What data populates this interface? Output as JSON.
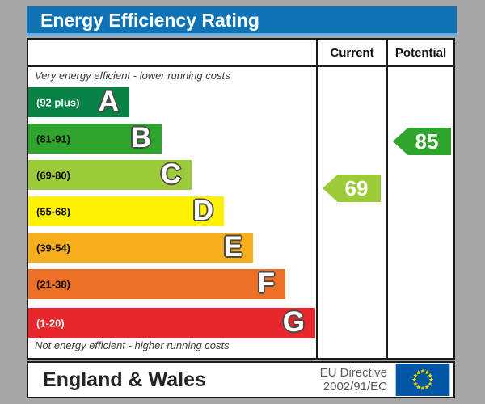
{
  "header": {
    "title": "Energy Efficiency Rating"
  },
  "table": {
    "current_label": "Current",
    "potential_label": "Potential",
    "top_note": "Very energy efficient - lower running costs",
    "bottom_note": "Not energy efficient - higher running costs"
  },
  "chart_data": {
    "type": "bar",
    "title": "Energy Efficiency Rating",
    "categories": [
      "A",
      "B",
      "C",
      "D",
      "E",
      "F",
      "G"
    ],
    "bands": [
      {
        "letter": "A",
        "range_label": "(92 plus)",
        "min": 92,
        "max": 100,
        "color": "#078445",
        "range_text_color": "#ffffff"
      },
      {
        "letter": "B",
        "range_label": "(81-91)",
        "min": 81,
        "max": 91,
        "color": "#2EA52C",
        "range_text_color": "#101010"
      },
      {
        "letter": "C",
        "range_label": "(69-80)",
        "min": 69,
        "max": 80,
        "color": "#9BCA3B",
        "range_text_color": "#101010"
      },
      {
        "letter": "D",
        "range_label": "(55-68)",
        "min": 55,
        "max": 68,
        "color": "#FEF102",
        "range_text_color": "#101010"
      },
      {
        "letter": "E",
        "range_label": "(39-54)",
        "min": 39,
        "max": 54,
        "color": "#F7AE1D",
        "range_text_color": "#101010"
      },
      {
        "letter": "F",
        "range_label": "(21-38)",
        "min": 21,
        "max": 38,
        "color": "#EE7026",
        "range_text_color": "#101010"
      },
      {
        "letter": "G",
        "range_label": "(1-20)",
        "min": 1,
        "max": 20,
        "color": "#E9262B",
        "range_text_color": "#ffffff"
      }
    ],
    "current": {
      "value": 69,
      "band": "C",
      "color": "#9BCA3B"
    },
    "potential": {
      "value": 85,
      "band": "B",
      "color": "#2EA52C"
    }
  },
  "footer": {
    "region": "England & Wales",
    "directive_line1": "EU Directive",
    "directive_line2": "2002/91/EC"
  },
  "colors": {
    "header_bg": "#0E72B5",
    "page_background": "#A6A6A6",
    "border": "#1A1A1A",
    "eu_flag_blue": "#0157A4",
    "eu_star_yellow": "#FFDD00"
  }
}
